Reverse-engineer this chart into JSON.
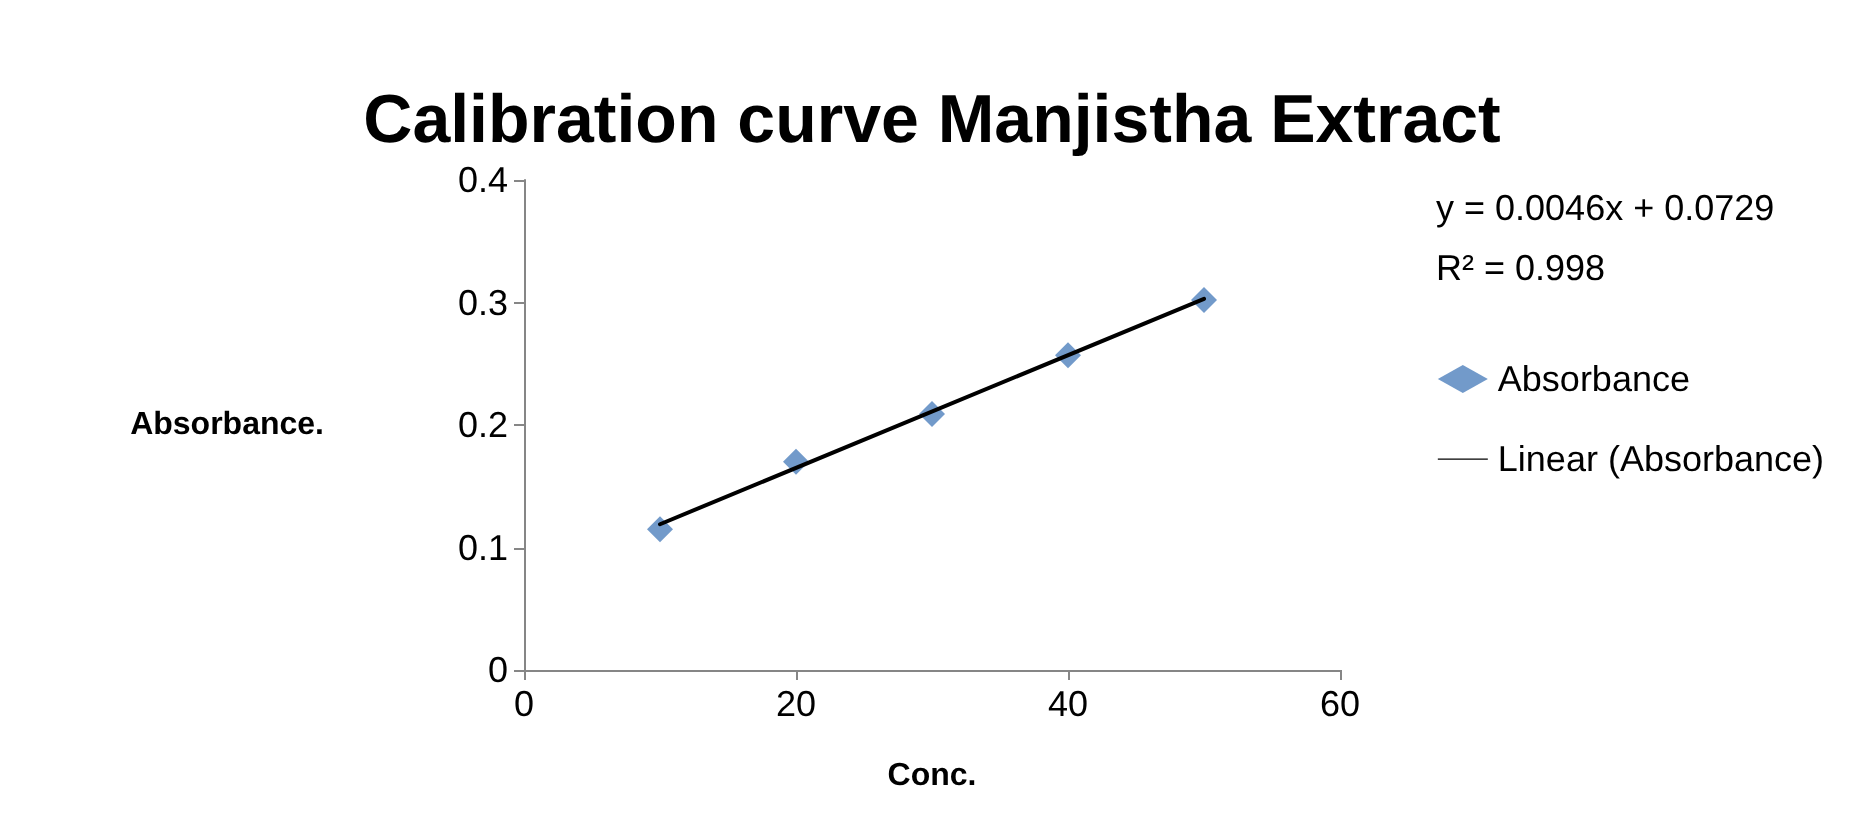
{
  "chart_data": {
    "type": "scatter",
    "title": "Calibration curve Manjistha Extract",
    "xlabel": "Conc.",
    "ylabel": "Absorbance.",
    "annotations": [
      "y = 0.0046x + 0.0729",
      "R² = 0.998"
    ],
    "xlim": [
      0,
      60
    ],
    "xticks": [
      0,
      20,
      40,
      60
    ],
    "ylim": [
      0,
      0.4
    ],
    "yticks": [
      0,
      0.1,
      0.2,
      0.3,
      0.4
    ],
    "grid": false,
    "legend": "right",
    "series": [
      {
        "name": "Absorbance",
        "color": "#4f81bd",
        "marker": "diamond",
        "x": [
          10,
          20,
          30,
          40,
          50
        ],
        "values": [
          0.115,
          0.17,
          0.209,
          0.257,
          0.302
        ]
      },
      {
        "name": "Linear (Absorbance)",
        "type": "line",
        "color": "#000000",
        "marker": "none",
        "line_style": "solid",
        "x": [
          10,
          50
        ],
        "values": [
          0.119,
          0.303
        ]
      }
    ]
  }
}
